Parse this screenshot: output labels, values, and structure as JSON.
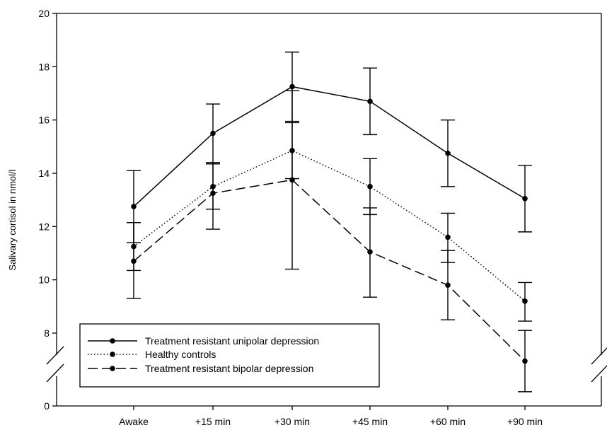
{
  "chart_data": {
    "type": "line",
    "title": "",
    "xlabel": "",
    "ylabel": "Salivary cortisol in nmol/l",
    "categories": [
      "Awake",
      "+15 min",
      "+30 min",
      "+45 min",
      "+60 min",
      "+90 min"
    ],
    "yticks": [
      0,
      8,
      10,
      12,
      14,
      16,
      18,
      20
    ],
    "ylim": [
      0,
      20
    ],
    "axis_break": true,
    "grid": false,
    "legend_position": "bottom-left",
    "series": [
      {
        "name": "Treatment resistant unipolar depression",
        "style": "solid",
        "values": [
          12.75,
          15.5,
          17.25,
          16.7,
          14.75,
          13.05
        ],
        "error_low": [
          11.4,
          14.4,
          15.95,
          15.45,
          13.5,
          11.8
        ],
        "error_high": [
          14.1,
          16.6,
          18.55,
          17.95,
          16.0,
          14.3
        ]
      },
      {
        "name": "Healthy controls",
        "style": "dotted",
        "values": [
          11.25,
          13.5,
          14.85,
          13.5,
          11.6,
          9.2
        ],
        "error_low": [
          10.35,
          12.65,
          13.8,
          12.45,
          10.65,
          8.45
        ],
        "error_high": [
          12.15,
          14.35,
          15.9,
          14.55,
          12.5,
          9.9
        ]
      },
      {
        "name": "Treatment resistant bipolar depression",
        "style": "dashed",
        "values": [
          10.7,
          13.25,
          13.75,
          11.05,
          9.8,
          6.95
        ],
        "error_low": [
          9.3,
          11.9,
          10.4,
          9.35,
          8.5,
          5.8
        ],
        "error_high": [
          12.15,
          14.4,
          17.1,
          12.7,
          11.1,
          8.1
        ]
      }
    ]
  },
  "colors": {
    "line": "#000000",
    "background": "#ffffff"
  }
}
